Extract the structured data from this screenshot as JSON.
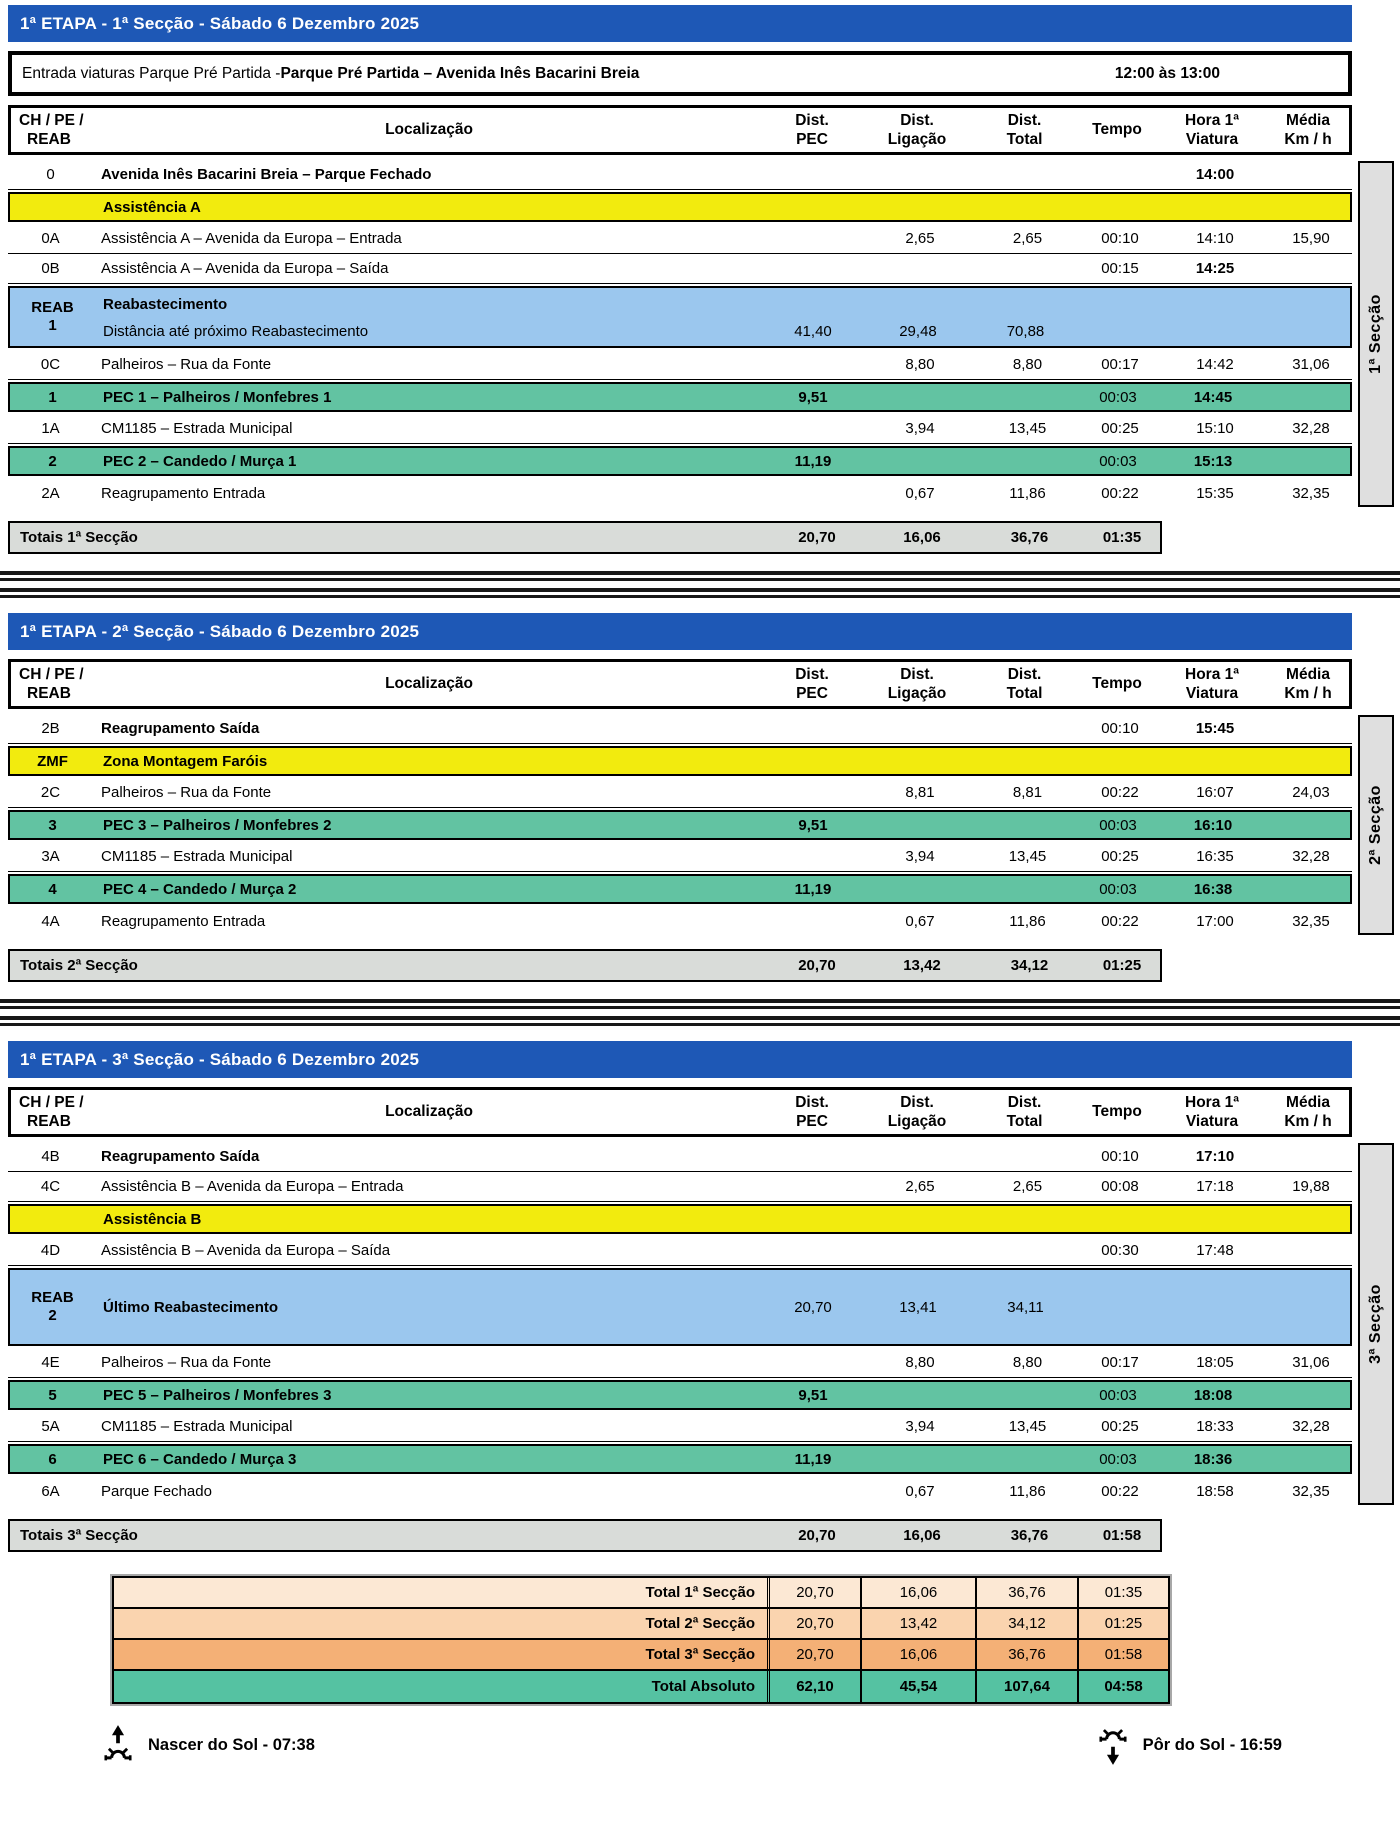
{
  "colors": {
    "header_blue": "#1e58b6",
    "assistance_yellow": "#f2eb0e",
    "reab_blue": "#9bc7ee",
    "pec_green": "#62c3a2",
    "totals_gray": "#d9dcd9",
    "side_gray": "#dfdfdf",
    "summary_peach_1": "#fce8d4",
    "summary_peach_2": "#fad4af",
    "summary_orange_3": "#f4b076",
    "summary_teal": "#55c2a2"
  },
  "columns": {
    "code": [
      "CH / PE /",
      "REAB"
    ],
    "loc": "Localização",
    "pec": [
      "Dist.",
      "PEC"
    ],
    "lig": [
      "Dist.",
      "Ligação"
    ],
    "tot": [
      "Dist.",
      "Total"
    ],
    "tmp": "Tempo",
    "hora": [
      "Hora 1ª",
      "Viatura"
    ],
    "med": [
      "Média",
      "Km / h"
    ]
  },
  "sections": [
    {
      "title": "1ª  ETAPA - 1ª  Secção - Sábado 6 Dezembro 2025",
      "side_label": "1ª Secção",
      "entry": {
        "text_regular": "Entrada viaturas Parque Pré  Partida - ",
        "text_bold": "Parque Pré Partida – Avenida Inês Bacarini Breia",
        "time": "12:00 às 13:00"
      },
      "rows": [
        {
          "t": "n",
          "c": "0",
          "l": "Avenida Inês Bacarini Breia – Parque Fechado",
          "lb": true,
          "hora": "14:00",
          "hb": true
        },
        {
          "t": "y",
          "c": "",
          "l": "Assistência A"
        },
        {
          "t": "n",
          "c": "0A",
          "l": "Assistência A – Avenida da Europa – Entrada",
          "lig": "2,65",
          "tot": "2,65",
          "tmp": "00:10",
          "hora": "14:10",
          "med": "15,90"
        },
        {
          "t": "n",
          "c": "0B",
          "l": "Assistência A – Avenida da Europa – Saída",
          "tmp": "00:15",
          "hora": "14:25",
          "hb": true
        },
        {
          "t": "r",
          "c": "REAB",
          "c2": "1",
          "l": "Reabastecimento",
          "l2": "Distância até próximo Reabastecimento",
          "pec": "41,40",
          "lig": "29,48",
          "tot": "70,88"
        },
        {
          "t": "n",
          "c": "0C",
          "l": "Palheiros – Rua da Fonte",
          "lig": "8,80",
          "tot": "8,80",
          "tmp": "00:17",
          "hora": "14:42",
          "med": "31,06"
        },
        {
          "t": "g",
          "c": "1",
          "l": "PEC 1 – Palheiros / Monfebres 1",
          "pec": "9,51",
          "tmp": "00:03",
          "hora": "14:45"
        },
        {
          "t": "n",
          "c": "1A",
          "l": "CM1185 – Estrada Municipal",
          "lig": "3,94",
          "tot": "13,45",
          "tmp": "00:25",
          "hora": "15:10",
          "med": "32,28"
        },
        {
          "t": "g",
          "c": "2",
          "l": "PEC 2 – Candedo / Murça 1",
          "pec": "11,19",
          "tmp": "00:03",
          "hora": "15:13"
        },
        {
          "t": "n",
          "c": "2A",
          "l": "Reagrupamento Entrada",
          "lig": "0,67",
          "tot": "11,86",
          "tmp": "00:22",
          "hora": "15:35",
          "med": "32,35"
        }
      ],
      "totals": {
        "label": "Totais 1ª Secção",
        "pec": "20,70",
        "lig": "16,06",
        "tot": "36,76",
        "tmp": "01:35"
      }
    },
    {
      "title": "1ª  ETAPA - 2ª  Secção - Sábado 6 Dezembro 2025",
      "side_label": "2ª Secção",
      "rows": [
        {
          "t": "n",
          "c": "2B",
          "l": "Reagrupamento Saída",
          "lb": true,
          "tmp": "00:10",
          "hora": "15:45",
          "hb": true
        },
        {
          "t": "y",
          "c": "ZMF",
          "l": "Zona Montagem Faróis"
        },
        {
          "t": "n",
          "c": "2C",
          "l": "Palheiros – Rua da Fonte",
          "lig": "8,81",
          "tot": "8,81",
          "tmp": "00:22",
          "hora": "16:07",
          "med": "24,03"
        },
        {
          "t": "g",
          "c": "3",
          "l": "PEC 3 – Palheiros / Monfebres 2",
          "pec": "9,51",
          "tmp": "00:03",
          "hora": "16:10"
        },
        {
          "t": "n",
          "c": "3A",
          "l": "CM1185 – Estrada Municipal",
          "lig": "3,94",
          "tot": "13,45",
          "tmp": "00:25",
          "hora": "16:35",
          "med": "32,28"
        },
        {
          "t": "g",
          "c": "4",
          "l": "PEC 4 – Candedo / Murça 2",
          "pec": "11,19",
          "tmp": "00:03",
          "hora": "16:38"
        },
        {
          "t": "n",
          "c": "4A",
          "l": "Reagrupamento Entrada",
          "lig": "0,67",
          "tot": "11,86",
          "tmp": "00:22",
          "hora": "17:00",
          "med": "32,35"
        }
      ],
      "totals": {
        "label": "Totais 2ª Secção",
        "pec": "20,70",
        "lig": "13,42",
        "tot": "34,12",
        "tmp": "01:25"
      }
    },
    {
      "title": "1ª  ETAPA - 3ª  Secção - Sábado 6 Dezembro 2025",
      "side_label": "3ª Secção",
      "rows": [
        {
          "t": "n",
          "c": "4B",
          "l": "Reagrupamento Saída",
          "lb": true,
          "tmp": "00:10",
          "hora": "17:10",
          "hb": true
        },
        {
          "t": "n",
          "c": "4C",
          "l": "Assistência B – Avenida da Europa – Entrada",
          "lig": "2,65",
          "tot": "2,65",
          "tmp": "00:08",
          "hora": "17:18",
          "med": "19,88"
        },
        {
          "t": "y",
          "c": "",
          "l": "Assistência B"
        },
        {
          "t": "n",
          "c": "4D",
          "l": "Assistência B – Avenida da Europa – Saída",
          "tmp": "00:30",
          "hora": "17:48"
        },
        {
          "t": "r",
          "c": "REAB",
          "c2": "2",
          "l": "Último Reabastecimento",
          "pec": "20,70",
          "lig": "13,41",
          "tot": "34,11"
        },
        {
          "t": "n",
          "c": "4E",
          "l": "Palheiros – Rua da Fonte",
          "lig": "8,80",
          "tot": "8,80",
          "tmp": "00:17",
          "hora": "18:05",
          "med": "31,06"
        },
        {
          "t": "g",
          "c": "5",
          "l": "PEC 5 – Palheiros / Monfebres 3",
          "pec": "9,51",
          "tmp": "00:03",
          "hora": "18:08"
        },
        {
          "t": "n",
          "c": "5A",
          "l": "CM1185 – Estrada Municipal",
          "lig": "3,94",
          "tot": "13,45",
          "tmp": "00:25",
          "hora": "18:33",
          "med": "32,28"
        },
        {
          "t": "g",
          "c": "6",
          "l": "PEC 6 – Candedo / Murça 3",
          "pec": "11,19",
          "tmp": "00:03",
          "hora": "18:36"
        },
        {
          "t": "n",
          "c": "6A",
          "l": "Parque Fechado",
          "lig": "0,67",
          "tot": "11,86",
          "tmp": "00:22",
          "hora": "18:58",
          "med": "32,35"
        }
      ],
      "totals": {
        "label": "Totais 3ª Secção",
        "pec": "20,70",
        "lig": "16,06",
        "tot": "36,76",
        "tmp": "01:58"
      }
    }
  ],
  "summary": {
    "rows": [
      {
        "label": "Total 1ª Secção",
        "values": [
          "20,70",
          "16,06",
          "36,76",
          "01:35"
        ],
        "bg": "#fce8d4",
        "bold": false
      },
      {
        "label": "Total 2ª Secção",
        "values": [
          "20,70",
          "13,42",
          "34,12",
          "01:25"
        ],
        "bg": "#fad4af",
        "bold": false
      },
      {
        "label": "Total 3ª Secção",
        "values": [
          "20,70",
          "16,06",
          "36,76",
          "01:58"
        ],
        "bg": "#f4b076",
        "bold": false
      },
      {
        "label": "Total Absoluto",
        "values": [
          "62,10",
          "45,54",
          "107,64",
          "04:58"
        ],
        "bg": "#55c2a2",
        "bold": true
      }
    ]
  },
  "footer": {
    "sunrise_label": "Nascer do Sol -  07:38",
    "sunset_label": "Pôr do Sol - 16:59"
  }
}
